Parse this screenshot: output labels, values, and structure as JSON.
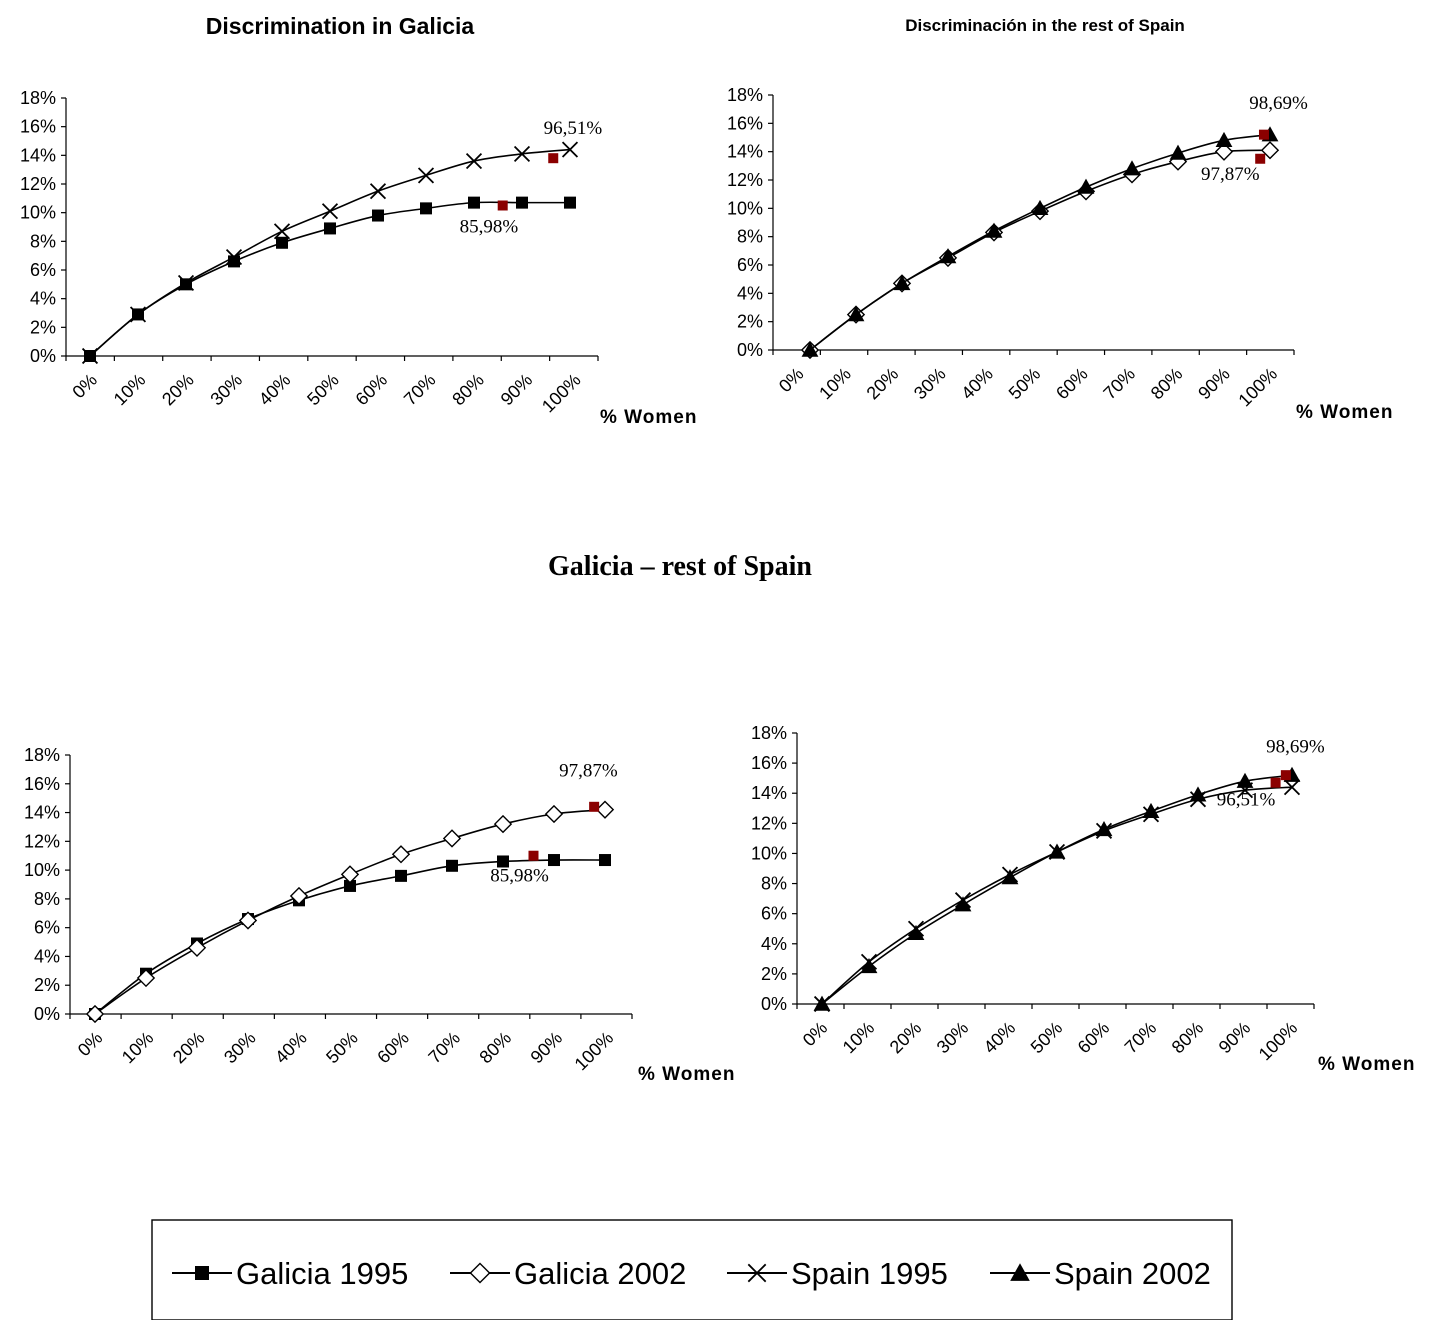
{
  "page": {
    "section_title": "Galicia – rest of Spain",
    "legend": [
      {
        "name": "Galicia 1995",
        "marker": "square"
      },
      {
        "name": "Galicia 2002",
        "marker": "diamond-open"
      },
      {
        "name": "Spain 1995",
        "marker": "x"
      },
      {
        "name": "Spain 2002",
        "marker": "triangle"
      }
    ]
  },
  "colors": {
    "line": "#000000",
    "highlight": "#8b0000"
  },
  "chart_data": [
    {
      "type": "line",
      "title": "Discrimination in Galicia",
      "xlabel": "% Women",
      "ylabel": "",
      "x_tick_labels": [
        "0%",
        "10%",
        "20%",
        "30%",
        "40%",
        "50%",
        "60%",
        "70%",
        "80%",
        "90%",
        "100%"
      ],
      "y_tick_labels": [
        "0%",
        "2%",
        "4%",
        "6%",
        "8%",
        "10%",
        "12%",
        "14%",
        "16%",
        "18%"
      ],
      "ylim": [
        0,
        18
      ],
      "series": [
        {
          "name": "Galicia 1995",
          "marker": "square",
          "x": [
            0,
            10,
            20,
            30,
            40,
            50,
            60,
            70,
            80,
            90,
            100
          ],
          "values": [
            0,
            2.9,
            5.0,
            6.6,
            7.9,
            8.9,
            9.8,
            10.3,
            10.7,
            10.7,
            10.7
          ]
        },
        {
          "name": "Spain 1995",
          "marker": "x",
          "x": [
            0,
            10,
            20,
            30,
            40,
            50,
            60,
            70,
            80,
            90,
            100
          ],
          "values": [
            0,
            2.9,
            5.1,
            6.9,
            8.7,
            10.1,
            11.5,
            12.6,
            13.6,
            14.1,
            14.4
          ]
        }
      ],
      "highlights": [
        {
          "x": 85.98,
          "y": 10.5
        },
        {
          "x": 96.51,
          "y": 13.8
        }
      ],
      "annotations": [
        {
          "text": "96,51%",
          "x": 94.5,
          "y": 15.5
        },
        {
          "text": "85,98%",
          "x": 77.0,
          "y": 8.6
        }
      ]
    },
    {
      "type": "line",
      "title": "Discriminación in the rest of Spain",
      "xlabel": "% Women",
      "ylabel": "",
      "x_tick_labels": [
        "0%",
        "10%",
        "20%",
        "30%",
        "40%",
        "50%",
        "60%",
        "70%",
        "80%",
        "90%",
        "100%"
      ],
      "y_tick_labels": [
        "0%",
        "2%",
        "4%",
        "6%",
        "8%",
        "10%",
        "12%",
        "14%",
        "16%",
        "18%"
      ],
      "ylim": [
        0,
        18
      ],
      "series": [
        {
          "name": "Galicia 2002",
          "marker": "diamond-open",
          "x": [
            0,
            10,
            20,
            30,
            40,
            50,
            60,
            70,
            80,
            90,
            100
          ],
          "values": [
            0,
            2.5,
            4.7,
            6.5,
            8.3,
            9.8,
            11.2,
            12.4,
            13.3,
            14.0,
            14.1
          ]
        },
        {
          "name": "Spain 2002",
          "marker": "triangle",
          "x": [
            0,
            10,
            20,
            30,
            40,
            50,
            60,
            70,
            80,
            90,
            100
          ],
          "values": [
            0,
            2.5,
            4.7,
            6.6,
            8.4,
            10.0,
            11.5,
            12.8,
            13.9,
            14.8,
            15.2
          ]
        }
      ],
      "highlights": [
        {
          "x": 97.87,
          "y": 13.5
        },
        {
          "x": 98.69,
          "y": 15.2
        }
      ],
      "annotations": [
        {
          "text": "98,69%",
          "x": 95.5,
          "y": 17.0
        },
        {
          "text": "97,87%",
          "x": 85.0,
          "y": 12.0
        }
      ]
    },
    {
      "type": "line",
      "title": "",
      "xlabel": "% Women",
      "ylabel": "",
      "x_tick_labels": [
        "0%",
        "10%",
        "20%",
        "30%",
        "40%",
        "50%",
        "60%",
        "70%",
        "80%",
        "90%",
        "100%"
      ],
      "y_tick_labels": [
        "0%",
        "2%",
        "4%",
        "6%",
        "8%",
        "10%",
        "12%",
        "14%",
        "16%",
        "18%"
      ],
      "ylim": [
        0,
        18
      ],
      "series": [
        {
          "name": "Galicia 1995",
          "marker": "square",
          "x": [
            0,
            10,
            20,
            30,
            40,
            50,
            60,
            70,
            80,
            90,
            100
          ],
          "values": [
            0,
            2.8,
            4.9,
            6.6,
            7.9,
            8.9,
            9.6,
            10.3,
            10.6,
            10.7,
            10.7
          ]
        },
        {
          "name": "Galicia 2002",
          "marker": "diamond-open",
          "x": [
            0,
            10,
            20,
            30,
            40,
            50,
            60,
            70,
            80,
            90,
            100
          ],
          "values": [
            0,
            2.5,
            4.6,
            6.5,
            8.2,
            9.7,
            11.1,
            12.2,
            13.2,
            13.9,
            14.2
          ]
        }
      ],
      "highlights": [
        {
          "x": 85.98,
          "y": 11.0
        },
        {
          "x": 97.87,
          "y": 14.4
        }
      ],
      "annotations": [
        {
          "text": "97,87%",
          "x": 91.0,
          "y": 16.5
        },
        {
          "text": "85,98%",
          "x": 77.5,
          "y": 9.2
        }
      ]
    },
    {
      "type": "line",
      "title": "",
      "xlabel": "% Women",
      "ylabel": "",
      "x_tick_labels": [
        "0%",
        "10%",
        "20%",
        "30%",
        "40%",
        "50%",
        "60%",
        "70%",
        "80%",
        "90%",
        "100%"
      ],
      "y_tick_labels": [
        "0%",
        "2%",
        "4%",
        "6%",
        "8%",
        "10%",
        "12%",
        "14%",
        "16%",
        "18%"
      ],
      "ylim": [
        0,
        18
      ],
      "series": [
        {
          "name": "Spain 1995",
          "marker": "x",
          "x": [
            0,
            10,
            20,
            30,
            40,
            50,
            60,
            70,
            80,
            90,
            100
          ],
          "values": [
            0,
            2.8,
            5.0,
            6.9,
            8.6,
            10.1,
            11.5,
            12.6,
            13.6,
            14.2,
            14.4
          ]
        },
        {
          "name": "Spain 2002",
          "marker": "triangle",
          "x": [
            0,
            10,
            20,
            30,
            40,
            50,
            60,
            70,
            80,
            90,
            100
          ],
          "values": [
            0,
            2.5,
            4.7,
            6.6,
            8.4,
            10.1,
            11.6,
            12.8,
            13.9,
            14.8,
            15.2
          ]
        }
      ],
      "highlights": [
        {
          "x": 96.51,
          "y": 14.7
        },
        {
          "x": 98.69,
          "y": 15.2
        }
      ],
      "annotations": [
        {
          "text": "98,69%",
          "x": 94.5,
          "y": 16.7
        },
        {
          "text": "96,51%",
          "x": 84.0,
          "y": 13.2
        }
      ]
    }
  ]
}
